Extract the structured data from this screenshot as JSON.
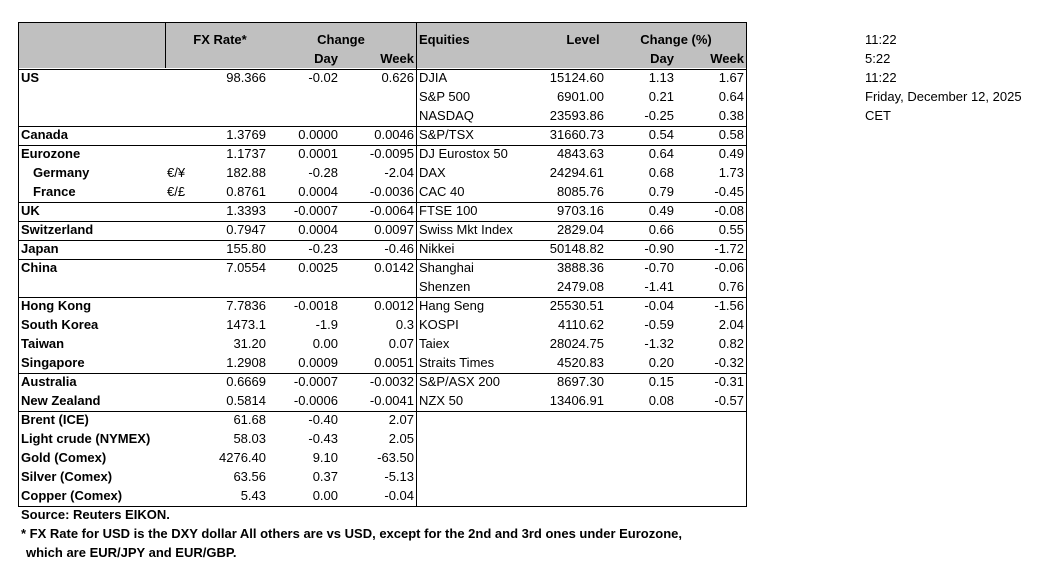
{
  "header": {
    "fx_rate": "FX Rate*",
    "change": "Change",
    "fx_day": "Day",
    "fx_week": "Week",
    "equities": "Equities",
    "level": "Level",
    "change_pct": "Change (%)",
    "eq_day": "Day",
    "eq_week": "Week"
  },
  "rows": [
    {
      "country": "US",
      "fx": "98.366",
      "fx_day": "-0.02",
      "fx_week": "0.626",
      "index": "DJIA",
      "level": "15124.60",
      "eq_day": "1.13",
      "eq_week": "1.67"
    },
    {
      "index": "S&P 500",
      "level": "6901.00",
      "eq_day": "0.21",
      "eq_week": "0.64"
    },
    {
      "index": "NASDAQ",
      "level": "23593.86",
      "eq_day": "-0.25",
      "eq_week": "0.38"
    },
    {
      "country": "Canada",
      "fx": "1.3769",
      "fx_day": "0.0000",
      "fx_week": "0.0046",
      "index": "S&P/TSX",
      "level": "31660.73",
      "eq_day": "0.54",
      "eq_week": "0.58"
    },
    {
      "country": "Eurozone",
      "fx": "1.1737",
      "fx_day": "0.0001",
      "fx_week": "-0.0095",
      "index": "DJ Eurostox 50",
      "level": "4843.63",
      "eq_day": "0.64",
      "eq_week": "0.49"
    },
    {
      "country": "Germany",
      "currency": "€/¥",
      "fx": "182.88",
      "fx_day": "-0.28",
      "fx_week": "-2.04",
      "index": "DAX",
      "level": "24294.61",
      "eq_day": "0.68",
      "eq_week": "1.73"
    },
    {
      "country": "France",
      "currency": "€/£",
      "fx": "0.8761",
      "fx_day": "0.0004",
      "fx_week": "-0.0036",
      "index": "CAC 40",
      "level": "8085.76",
      "eq_day": "0.79",
      "eq_week": "-0.45"
    },
    {
      "country": "UK",
      "fx": "1.3393",
      "fx_day": "-0.0007",
      "fx_week": "-0.0064",
      "index": "FTSE 100",
      "level": "9703.16",
      "eq_day": "0.49",
      "eq_week": "-0.08"
    },
    {
      "country": "Switzerland",
      "fx": "0.7947",
      "fx_day": "0.0004",
      "fx_week": "0.0097",
      "index": "Swiss Mkt Index",
      "level": "2829.04",
      "eq_day": "0.66",
      "eq_week": "0.55"
    },
    {
      "country": "Japan",
      "fx": "155.80",
      "fx_day": "-0.23",
      "fx_week": "-0.46",
      "index": "Nikkei",
      "level": "50148.82",
      "eq_day": "-0.90",
      "eq_week": "-1.72"
    },
    {
      "country": "China",
      "fx": "7.0554",
      "fx_day": "0.0025",
      "fx_week": "0.0142",
      "index": "Shanghai",
      "level": "3888.36",
      "eq_day": "-0.70",
      "eq_week": "-0.06"
    },
    {
      "index": "Shenzen",
      "level": "2479.08",
      "eq_day": "-1.41",
      "eq_week": "0.76"
    },
    {
      "country": "Hong Kong",
      "fx": "7.7836",
      "fx_day": "-0.0018",
      "fx_week": "0.0012",
      "index": "Hang Seng",
      "level": "25530.51",
      "eq_day": "-0.04",
      "eq_week": "-1.56"
    },
    {
      "country": "South Korea",
      "fx": "1473.1",
      "fx_day": "-1.9",
      "fx_week": "0.3",
      "index": "KOSPI",
      "level": "4110.62",
      "eq_day": "-0.59",
      "eq_week": "2.04"
    },
    {
      "country": "Taiwan",
      "fx": "31.20",
      "fx_day": "0.00",
      "fx_week": "0.07",
      "index": "Taiex",
      "level": "28024.75",
      "eq_day": "-1.32",
      "eq_week": "0.82"
    },
    {
      "country": "Singapore",
      "fx": "1.2908",
      "fx_day": "0.0009",
      "fx_week": "0.0051",
      "index": "Straits Times",
      "level": "4520.83",
      "eq_day": "0.20",
      "eq_week": "-0.32"
    },
    {
      "country": "Australia",
      "fx": "0.6669",
      "fx_day": "-0.0007",
      "fx_week": "-0.0032",
      "index": "S&P/ASX  200",
      "level": "8697.30",
      "eq_day": "0.15",
      "eq_week": "-0.31"
    },
    {
      "country": "New Zealand",
      "fx": "0.5814",
      "fx_day": "-0.0006",
      "fx_week": "-0.0041",
      "index": "NZX 50",
      "level": "13406.91",
      "eq_day": "0.08",
      "eq_week": "-0.57"
    },
    {
      "country": "Brent (ICE)",
      "fx": "61.68",
      "fx_day": "-0.40",
      "fx_week": "2.07"
    },
    {
      "country": "Light crude (NYMEX)",
      "fx": "58.03",
      "fx_day": "-0.43",
      "fx_week": "2.05"
    },
    {
      "country": "Gold (Comex)",
      "fx": "4276.40",
      "fx_day": "9.10",
      "fx_week": "-63.50"
    },
    {
      "country": "Silver (Comex)",
      "fx": "63.56",
      "fx_day": "0.37",
      "fx_week": "-5.13"
    },
    {
      "country": "Copper (Comex)",
      "fx": "5.43",
      "fx_day": "0.00",
      "fx_week": "-0.04"
    }
  ],
  "times": [
    "11:22",
    "5:22",
    "11:22",
    "Friday, December 12, 2025",
    "CET"
  ],
  "footer": {
    "source": "Source:  Reuters EIKON.",
    "note_1": "* FX Rate for USD is the DXY dollar  All others are vs USD, except for the 2nd and 3rd ones under Eurozone,",
    "note_2": "which are EUR/JPY and EUR/GBP."
  }
}
